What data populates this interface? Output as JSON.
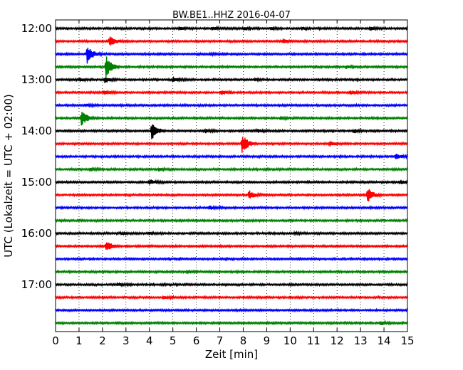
{
  "chart_data": {
    "type": "line",
    "title": "BW.BE1..HHZ 2016-04-07",
    "xlabel": "Zeit  [min]",
    "ylabel": "UTC (Lokalzeit = UTC + 02:00)",
    "xlim": [
      0,
      15
    ],
    "x_ticks": [
      0,
      1,
      2,
      3,
      4,
      5,
      6,
      7,
      8,
      9,
      10,
      11,
      12,
      13,
      14,
      15
    ],
    "x_tick_labels": [
      "0",
      "1",
      "2",
      "3",
      "4",
      "5",
      "6",
      "7",
      "8",
      "9",
      "10",
      "11",
      "12",
      "13",
      "14",
      "15"
    ],
    "y_tick_labels": [
      "12:00",
      "13:00",
      "14:00",
      "15:00",
      "16:00",
      "17:00"
    ],
    "trace_colors": [
      "#000000",
      "#ff0000",
      "#0000ff",
      "#008000"
    ],
    "grid": "dotted vertical",
    "traces": [
      {
        "start": "12:00",
        "events": [
          [
            5.3,
            0.12
          ],
          [
            6.7,
            0.12
          ],
          [
            8.0,
            0.12
          ],
          [
            9.2,
            0.1
          ],
          [
            10.5,
            0.1
          ],
          [
            13.4,
            0.15
          ],
          [
            15.0,
            0.12
          ]
        ]
      },
      {
        "start": "12:15",
        "events": [
          [
            2.3,
            0.55
          ],
          [
            9.7,
            0.2
          ]
        ]
      },
      {
        "start": "12:30",
        "events": [
          [
            1.35,
            0.9
          ],
          [
            6.6,
            0.1
          ]
        ]
      },
      {
        "start": "12:45",
        "events": [
          [
            2.15,
            1.2
          ],
          [
            12.4,
            0.12
          ]
        ]
      },
      {
        "start": "13:00",
        "events": [
          [
            1.0,
            0.15
          ],
          [
            2.1,
            0.3
          ],
          [
            5.0,
            0.25
          ],
          [
            8.5,
            0.1
          ]
        ]
      },
      {
        "start": "13:15",
        "events": [
          [
            2.05,
            0.2
          ],
          [
            7.05,
            0.25
          ],
          [
            12.55,
            0.2
          ]
        ]
      },
      {
        "start": "13:30",
        "events": [
          [
            1.3,
            0.12
          ]
        ]
      },
      {
        "start": "13:45",
        "events": [
          [
            1.1,
            0.9
          ],
          [
            9.6,
            0.12
          ]
        ]
      },
      {
        "start": "14:00",
        "events": [
          [
            4.1,
            0.9
          ],
          [
            6.4,
            0.15
          ],
          [
            8.6,
            0.15
          ],
          [
            12.7,
            0.2
          ]
        ]
      },
      {
        "start": "14:15",
        "events": [
          [
            7.95,
            1.1
          ],
          [
            11.7,
            0.2
          ]
        ]
      },
      {
        "start": "14:30",
        "events": [
          [
            14.5,
            0.3
          ]
        ]
      },
      {
        "start": "14:45",
        "events": [
          [
            1.5,
            0.15
          ],
          [
            4.4,
            0.12
          ]
        ]
      },
      {
        "start": "15:00",
        "events": [
          [
            4.0,
            0.25
          ],
          [
            14.7,
            0.15
          ]
        ]
      },
      {
        "start": "15:15",
        "events": [
          [
            8.25,
            0.45
          ],
          [
            13.3,
            0.75
          ]
        ]
      },
      {
        "start": "15:30",
        "events": [
          [
            6.55,
            0.2
          ]
        ]
      },
      {
        "start": "15:45",
        "events": []
      },
      {
        "start": "16:00",
        "events": [
          [
            2.8,
            0.1
          ],
          [
            4.0,
            0.1
          ],
          [
            10.2,
            0.1
          ]
        ]
      },
      {
        "start": "16:15",
        "events": [
          [
            2.15,
            0.55
          ]
        ]
      },
      {
        "start": "16:30",
        "events": []
      },
      {
        "start": "16:45",
        "events": [
          [
            5.6,
            0.1
          ]
        ]
      },
      {
        "start": "17:00",
        "events": [
          [
            2.65,
            0.15
          ]
        ]
      },
      {
        "start": "17:15",
        "events": [
          [
            4.6,
            0.12
          ]
        ]
      },
      {
        "start": "17:30",
        "events": []
      },
      {
        "start": "17:45",
        "events": [
          [
            13.85,
            0.2
          ]
        ]
      }
    ]
  }
}
